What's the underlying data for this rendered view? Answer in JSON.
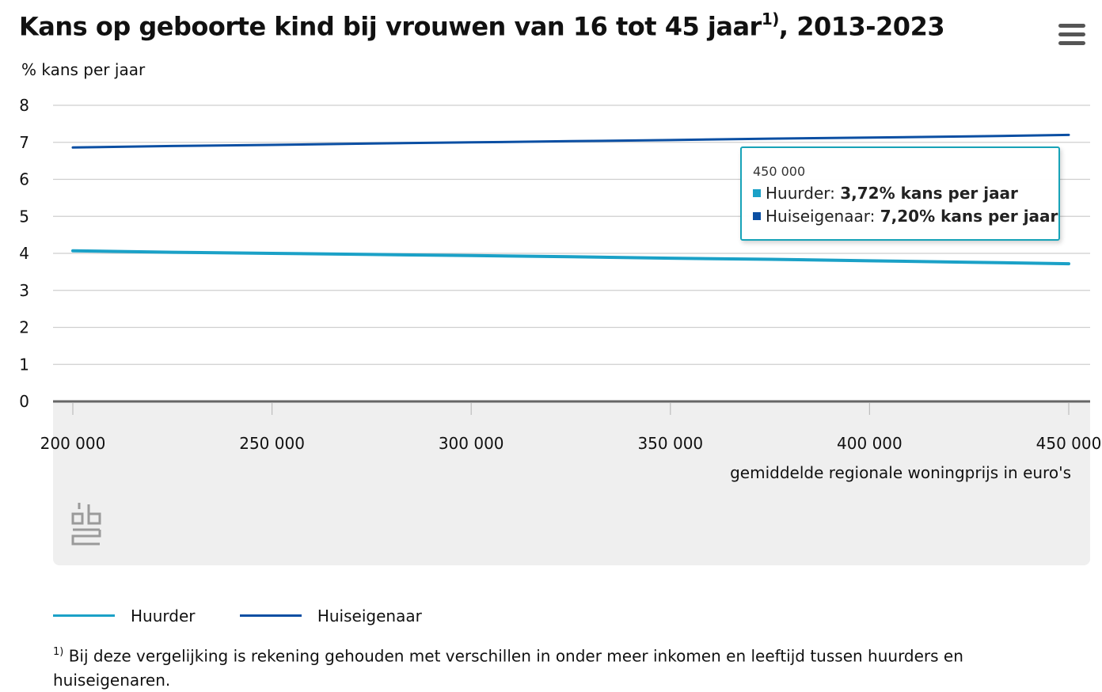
{
  "header": {
    "title": "Kans op geboorte kind bij vrouwen van 16 tot 45 jaar",
    "title_sup": "1)",
    "title_suffix": ", 2013-2023"
  },
  "menu": {
    "icon": "hamburger-menu-icon"
  },
  "tooltip": {
    "x_label": "450 000",
    "rows": [
      {
        "name": "Huurder",
        "value": "3,72% kans per jaar",
        "color": "#1ba1c7"
      },
      {
        "name": "Huiseigenaar",
        "value": "7,20% kans per jaar",
        "color": "#0b4fa3"
      }
    ]
  },
  "legend": {
    "items": [
      {
        "label": "Huurder",
        "color": "#1ba1c7"
      },
      {
        "label": "Huiseigenaar",
        "color": "#0b4fa3"
      }
    ]
  },
  "footnote": {
    "marker": "1)",
    "text": " Bij deze vergelijking is rekening gehouden met verschillen in onder meer inkomen en leeftijd tussen huurders en huiseigenaren."
  },
  "logo": {
    "icon": "cbs-logo-icon"
  },
  "chart_data": {
    "type": "line",
    "ylabel": "% kans per jaar",
    "xlabel": "gemiddelde regionale woningprijs in euro's",
    "ylim": [
      0,
      8
    ],
    "xlim": [
      200000,
      450000
    ],
    "yticks": [
      "0",
      "1",
      "2",
      "3",
      "4",
      "5",
      "6",
      "7",
      "8"
    ],
    "xticks": [
      {
        "value": 200000,
        "label": "200 000"
      },
      {
        "value": 250000,
        "label": "250 000"
      },
      {
        "value": 300000,
        "label": "300 000"
      },
      {
        "value": 350000,
        "label": "350 000"
      },
      {
        "value": 400000,
        "label": "400 000"
      },
      {
        "value": 450000,
        "label": "450 000"
      }
    ],
    "grid": true,
    "series": [
      {
        "name": "Huurder",
        "color": "#1ba1c7",
        "x": [
          200000,
          225000,
          250000,
          275000,
          300000,
          325000,
          350000,
          375000,
          400000,
          425000,
          450000
        ],
        "values": [
          4.07,
          4.03,
          4.0,
          3.97,
          3.94,
          3.91,
          3.87,
          3.84,
          3.8,
          3.76,
          3.72
        ]
      },
      {
        "name": "Huiseigenaar",
        "color": "#0b4fa3",
        "x": [
          200000,
          225000,
          250000,
          275000,
          300000,
          325000,
          350000,
          375000,
          400000,
          425000,
          450000
        ],
        "values": [
          6.86,
          6.9,
          6.93,
          6.97,
          7.0,
          7.03,
          7.06,
          7.1,
          7.13,
          7.16,
          7.2
        ]
      }
    ]
  }
}
